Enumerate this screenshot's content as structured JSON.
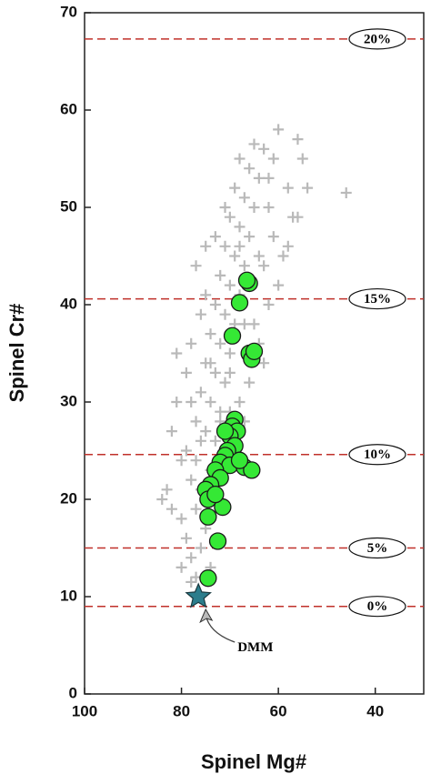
{
  "chart_data": {
    "type": "scatter",
    "x_label": "Spinel Mg#",
    "y_label": "Spinel Cr#",
    "xlim": [
      100,
      30
    ],
    "ylim": [
      0,
      70
    ],
    "xticks": [
      100,
      80,
      60,
      40
    ],
    "yticks": [
      0,
      10,
      20,
      30,
      40,
      50,
      60,
      70
    ],
    "reference_lines": [
      {
        "value": 9,
        "label": "0%"
      },
      {
        "value": 15,
        "label": "5%"
      },
      {
        "value": 24.6,
        "label": "10%"
      },
      {
        "value": 40.6,
        "label": "15%"
      },
      {
        "value": 67.3,
        "label": "20%"
      }
    ],
    "reference_color": "#c0302a",
    "annotation": "DMM",
    "series": [
      {
        "marker": "plus",
        "color": "#b9b9b9",
        "x": [
          77,
          78,
          76,
          79,
          75,
          80,
          77,
          84,
          76,
          78,
          74,
          77,
          79,
          73,
          75,
          77,
          72,
          74,
          76,
          71,
          73,
          75,
          70,
          72,
          74,
          69,
          71,
          73,
          68,
          70,
          72,
          67,
          69,
          71,
          66,
          68,
          70,
          65,
          67,
          69,
          64,
          66,
          68,
          63,
          65,
          60,
          56,
          58,
          46,
          55,
          57,
          61,
          63,
          58,
          62,
          65,
          60,
          56,
          54,
          66,
          68,
          63,
          67,
          70,
          81,
          80,
          83,
          82,
          79,
          78,
          76,
          75,
          73,
          71,
          66,
          64,
          69,
          72,
          74,
          80,
          78,
          82,
          75,
          77,
          81,
          62,
          59,
          68,
          70,
          72,
          74,
          76,
          78,
          73,
          71,
          70,
          67,
          64,
          62,
          61
        ],
        "values": [
          12,
          14,
          15,
          16,
          17,
          18,
          19,
          20,
          21,
          22,
          23,
          24,
          25,
          26,
          27,
          28,
          29,
          30,
          31,
          32,
          33,
          34,
          35,
          36,
          37,
          38,
          39,
          40,
          41,
          42,
          43,
          44,
          45,
          46,
          47,
          48,
          49,
          50,
          51,
          52,
          53,
          54,
          55,
          56,
          56.5,
          58,
          57,
          52,
          51.5,
          55,
          49,
          47,
          44,
          46,
          40,
          38,
          42,
          49,
          52,
          32,
          30,
          34,
          28,
          26,
          30,
          24,
          21,
          27,
          33,
          36,
          39,
          41,
          47,
          50,
          42,
          36,
          24,
          19,
          13,
          13,
          11.5,
          19,
          46,
          44,
          35,
          50,
          45,
          46,
          33,
          28,
          34,
          26,
          30,
          21,
          23,
          29,
          38,
          45,
          53,
          55
        ]
      },
      {
        "marker": "circle",
        "color": "#35e835",
        "x": [
          66,
          66.5,
          68,
          69.5,
          66,
          65.5,
          65,
          69,
          69.5,
          68.5,
          70,
          69,
          70.5,
          71,
          72,
          70,
          67,
          65.5,
          73,
          72,
          74,
          75,
          74.5,
          71.5,
          74.5,
          72.5,
          74.5,
          73,
          68,
          71
        ],
        "values": [
          42.2,
          42.5,
          40.2,
          36.8,
          35,
          34.4,
          35.2,
          28.2,
          27.5,
          27,
          26.5,
          25.5,
          25,
          24.5,
          23.8,
          23.5,
          23.3,
          23,
          23,
          22.2,
          21.5,
          21,
          20,
          19.2,
          18.2,
          15.7,
          11.9,
          20.5,
          24,
          27
        ]
      },
      {
        "marker": "star",
        "color": "#2b7d8c",
        "x": [
          76.5
        ],
        "values": [
          10
        ]
      }
    ]
  }
}
